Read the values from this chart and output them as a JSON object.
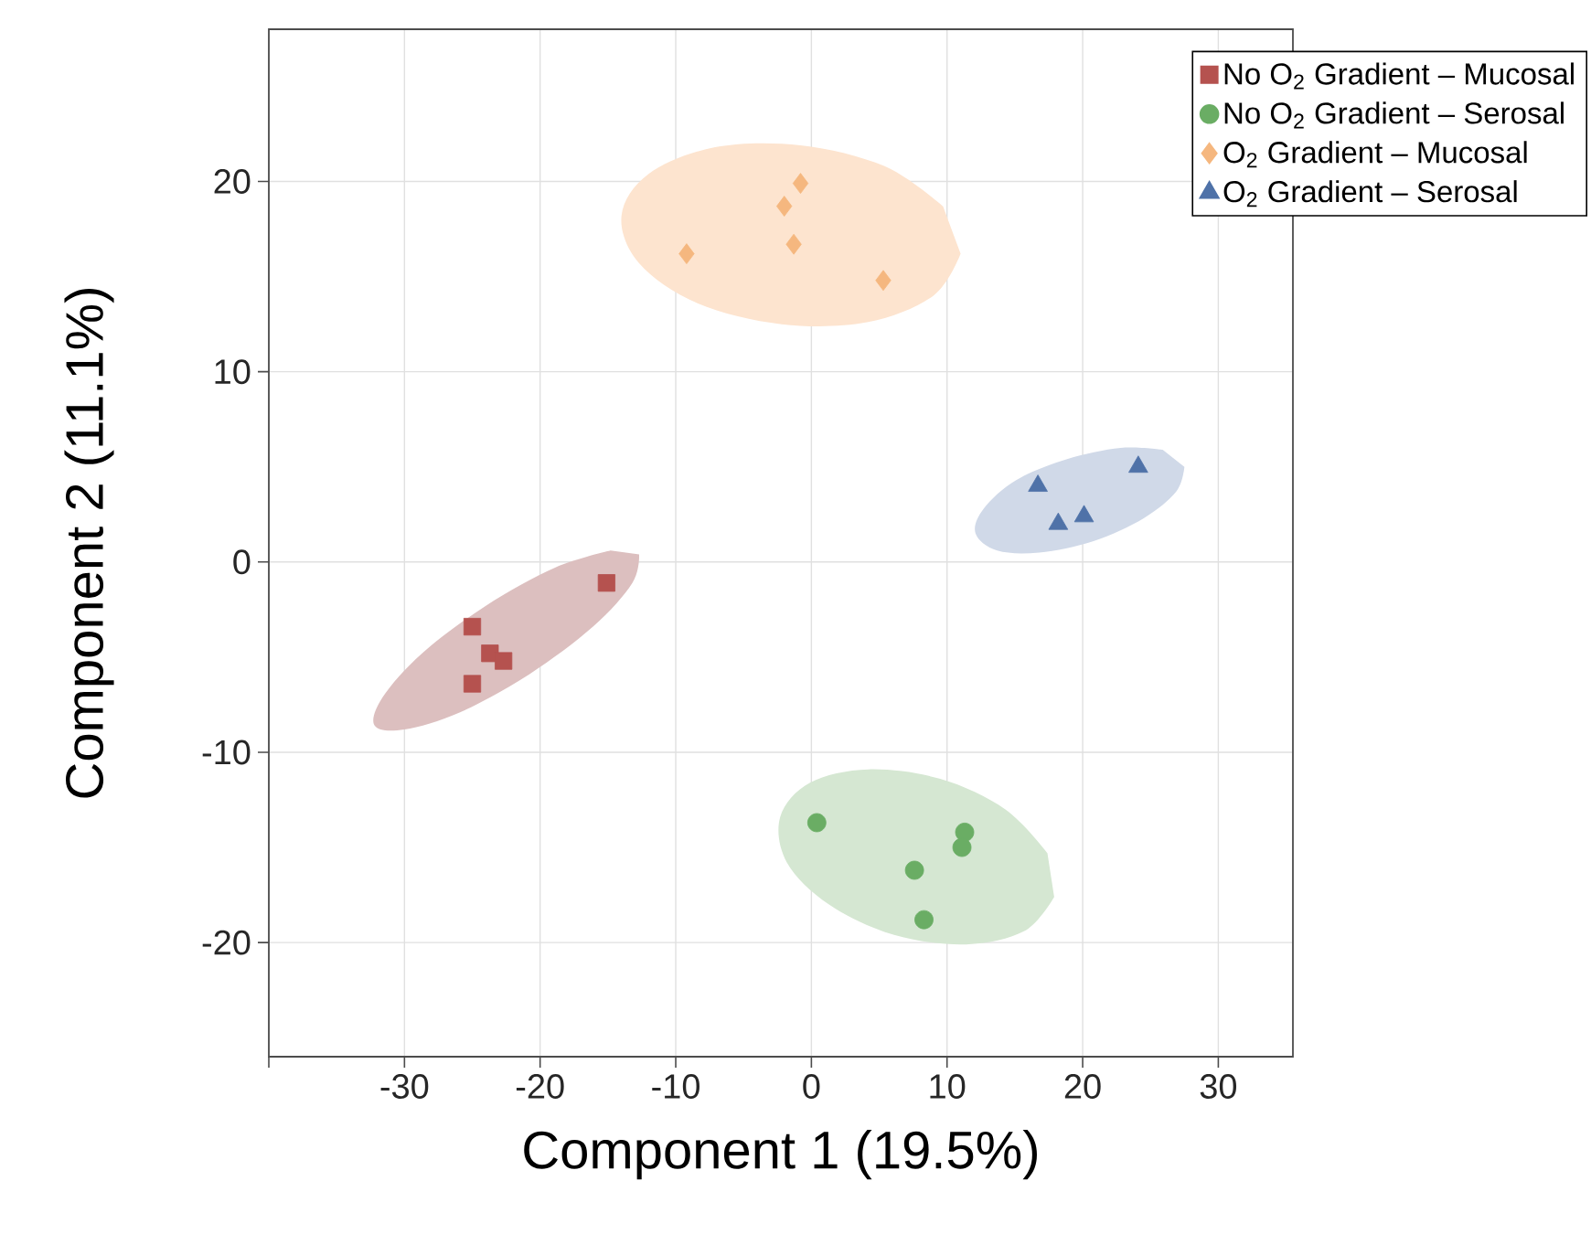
{
  "chart_data": {
    "type": "scatter",
    "xlabel": "Component 1 (19.5%)",
    "ylabel": "Component 2 (11.1%)",
    "xlim": [
      -40,
      35.5
    ],
    "ylim": [
      -26,
      28
    ],
    "xticks": [
      {
        "value": -40,
        "label": null
      },
      -30,
      -20,
      -10,
      0,
      10,
      20,
      30
    ],
    "yticks": [
      -20,
      -10,
      0,
      10,
      20
    ],
    "grid": true,
    "legend": "top right",
    "series": [
      {
        "type": "area",
        "color": "#dcbfbf",
        "x": [
          -12.7,
          -13.2,
          -16.1,
          -20.8,
          -25.9,
          -30,
          -32.2,
          -31.6,
          -28.7,
          -24,
          -18.9,
          -14.8
        ],
        "values": [
          0.4,
          -1.1,
          -3.4,
          -5.9,
          -7.9,
          -8.8,
          -8.6,
          -7.1,
          -4.8,
          -2.3,
          -0.3,
          0.6
        ]
      },
      {
        "type": "area",
        "color": "#fde4cf",
        "x": [
          11,
          9,
          4.1,
          -2.2,
          -8.4,
          -12.7,
          -14,
          -12,
          -7.1,
          -0.8,
          5.4,
          9.7
        ],
        "values": [
          16.2,
          14,
          12.6,
          12.5,
          13.6,
          15.7,
          18.2,
          20.4,
          21.8,
          21.9,
          20.8,
          18.7
        ]
      },
      {
        "type": "area",
        "color": "#d0d9e8",
        "x": [
          27.5,
          26.9,
          24.5,
          20.8,
          16.8,
          13.7,
          12.1,
          12.7,
          15.1,
          18.8,
          22.8,
          25.9
        ],
        "values": [
          5,
          3.7,
          2.3,
          1.1,
          0.5,
          0.6,
          1.5,
          2.8,
          4.3,
          5.4,
          6,
          5.9
        ]
      },
      {
        "type": "area",
        "color": "#d5e7d2",
        "x": [
          17.9,
          15.7,
          11.4,
          6.1,
          1.3,
          -1.8,
          -2.3,
          -0.1,
          4.2,
          9.5,
          14.3,
          17.4
        ],
        "values": [
          -17.6,
          -19.4,
          -20.1,
          -19.6,
          -18,
          -15.8,
          -13.4,
          -11.6,
          -10.9,
          -11.4,
          -13,
          -15.3
        ]
      },
      {
        "name": "No O$_{2}$ Gradient – Mucosal",
        "color": "#b5524f",
        "marker": "square",
        "x": [
          -15.1,
          -25.0,
          -23.7,
          -22.7,
          -25.0
        ],
        "values": [
          -1.1,
          -3.4,
          -4.8,
          -5.2,
          -6.4
        ]
      },
      {
        "name": "No O$_{2}$ Gradient – Serosal",
        "color": "#6aad64",
        "marker": "circle",
        "x": [
          0.4,
          11.3,
          11.1,
          7.6,
          8.3
        ],
        "values": [
          -13.7,
          -14.2,
          -15.0,
          -16.2,
          -18.8
        ]
      },
      {
        "name": "O$_{2}$ Gradient – Mucosal",
        "color": "#f5b77f",
        "marker": "diamond",
        "x": [
          -0.8,
          -2.0,
          -1.3,
          -9.2,
          5.3
        ],
        "values": [
          19.9,
          18.7,
          16.7,
          16.2,
          14.8
        ]
      },
      {
        "name": "O$_{2}$ Gradient – Serosal",
        "color": "#4f72a8",
        "marker": "triangle",
        "x": [
          24.1,
          16.7,
          20.1,
          18.2
        ],
        "values": [
          5.0,
          4.0,
          2.4,
          2.0
        ]
      }
    ]
  }
}
